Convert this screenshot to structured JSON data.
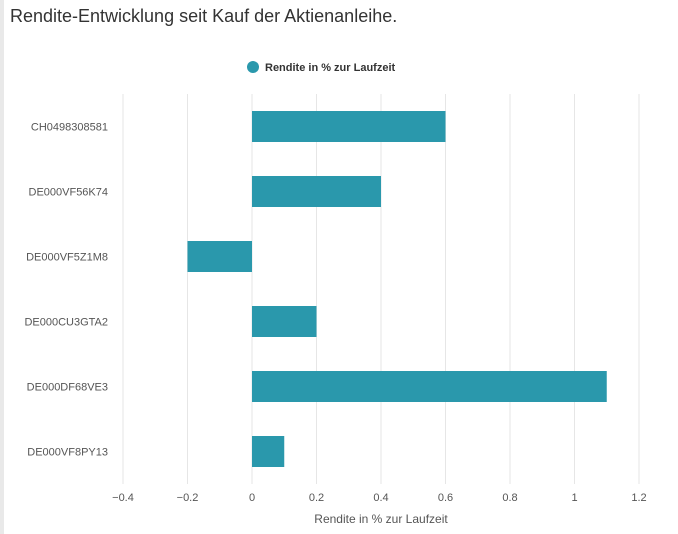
{
  "page": {
    "title": "Rendite-Entwicklung seit Kauf der Aktienanleihe."
  },
  "chart_data": {
    "type": "bar",
    "orientation": "horizontal",
    "categories": [
      "CH0498308581",
      "DE000VF56K74",
      "DE000VF5Z1M8",
      "DE000CU3GTA2",
      "DE000DF68VE3",
      "DE000VF8PY13"
    ],
    "series": [
      {
        "name": "Rendite in % zur Laufzeit",
        "values": [
          0.6,
          0.4,
          -0.2,
          0.2,
          1.1,
          0.1
        ],
        "color": "#2a98ac"
      }
    ],
    "xlabel": "Rendite in % zur Laufzeit",
    "ylabel": "",
    "xlim": [
      -0.4,
      1.2
    ],
    "x_ticks": [
      "−0.4",
      "−0.2",
      "0",
      "0.2",
      "0.4",
      "0.6",
      "0.8",
      "1",
      "1.2"
    ],
    "grid": true,
    "legend": "top-center"
  }
}
